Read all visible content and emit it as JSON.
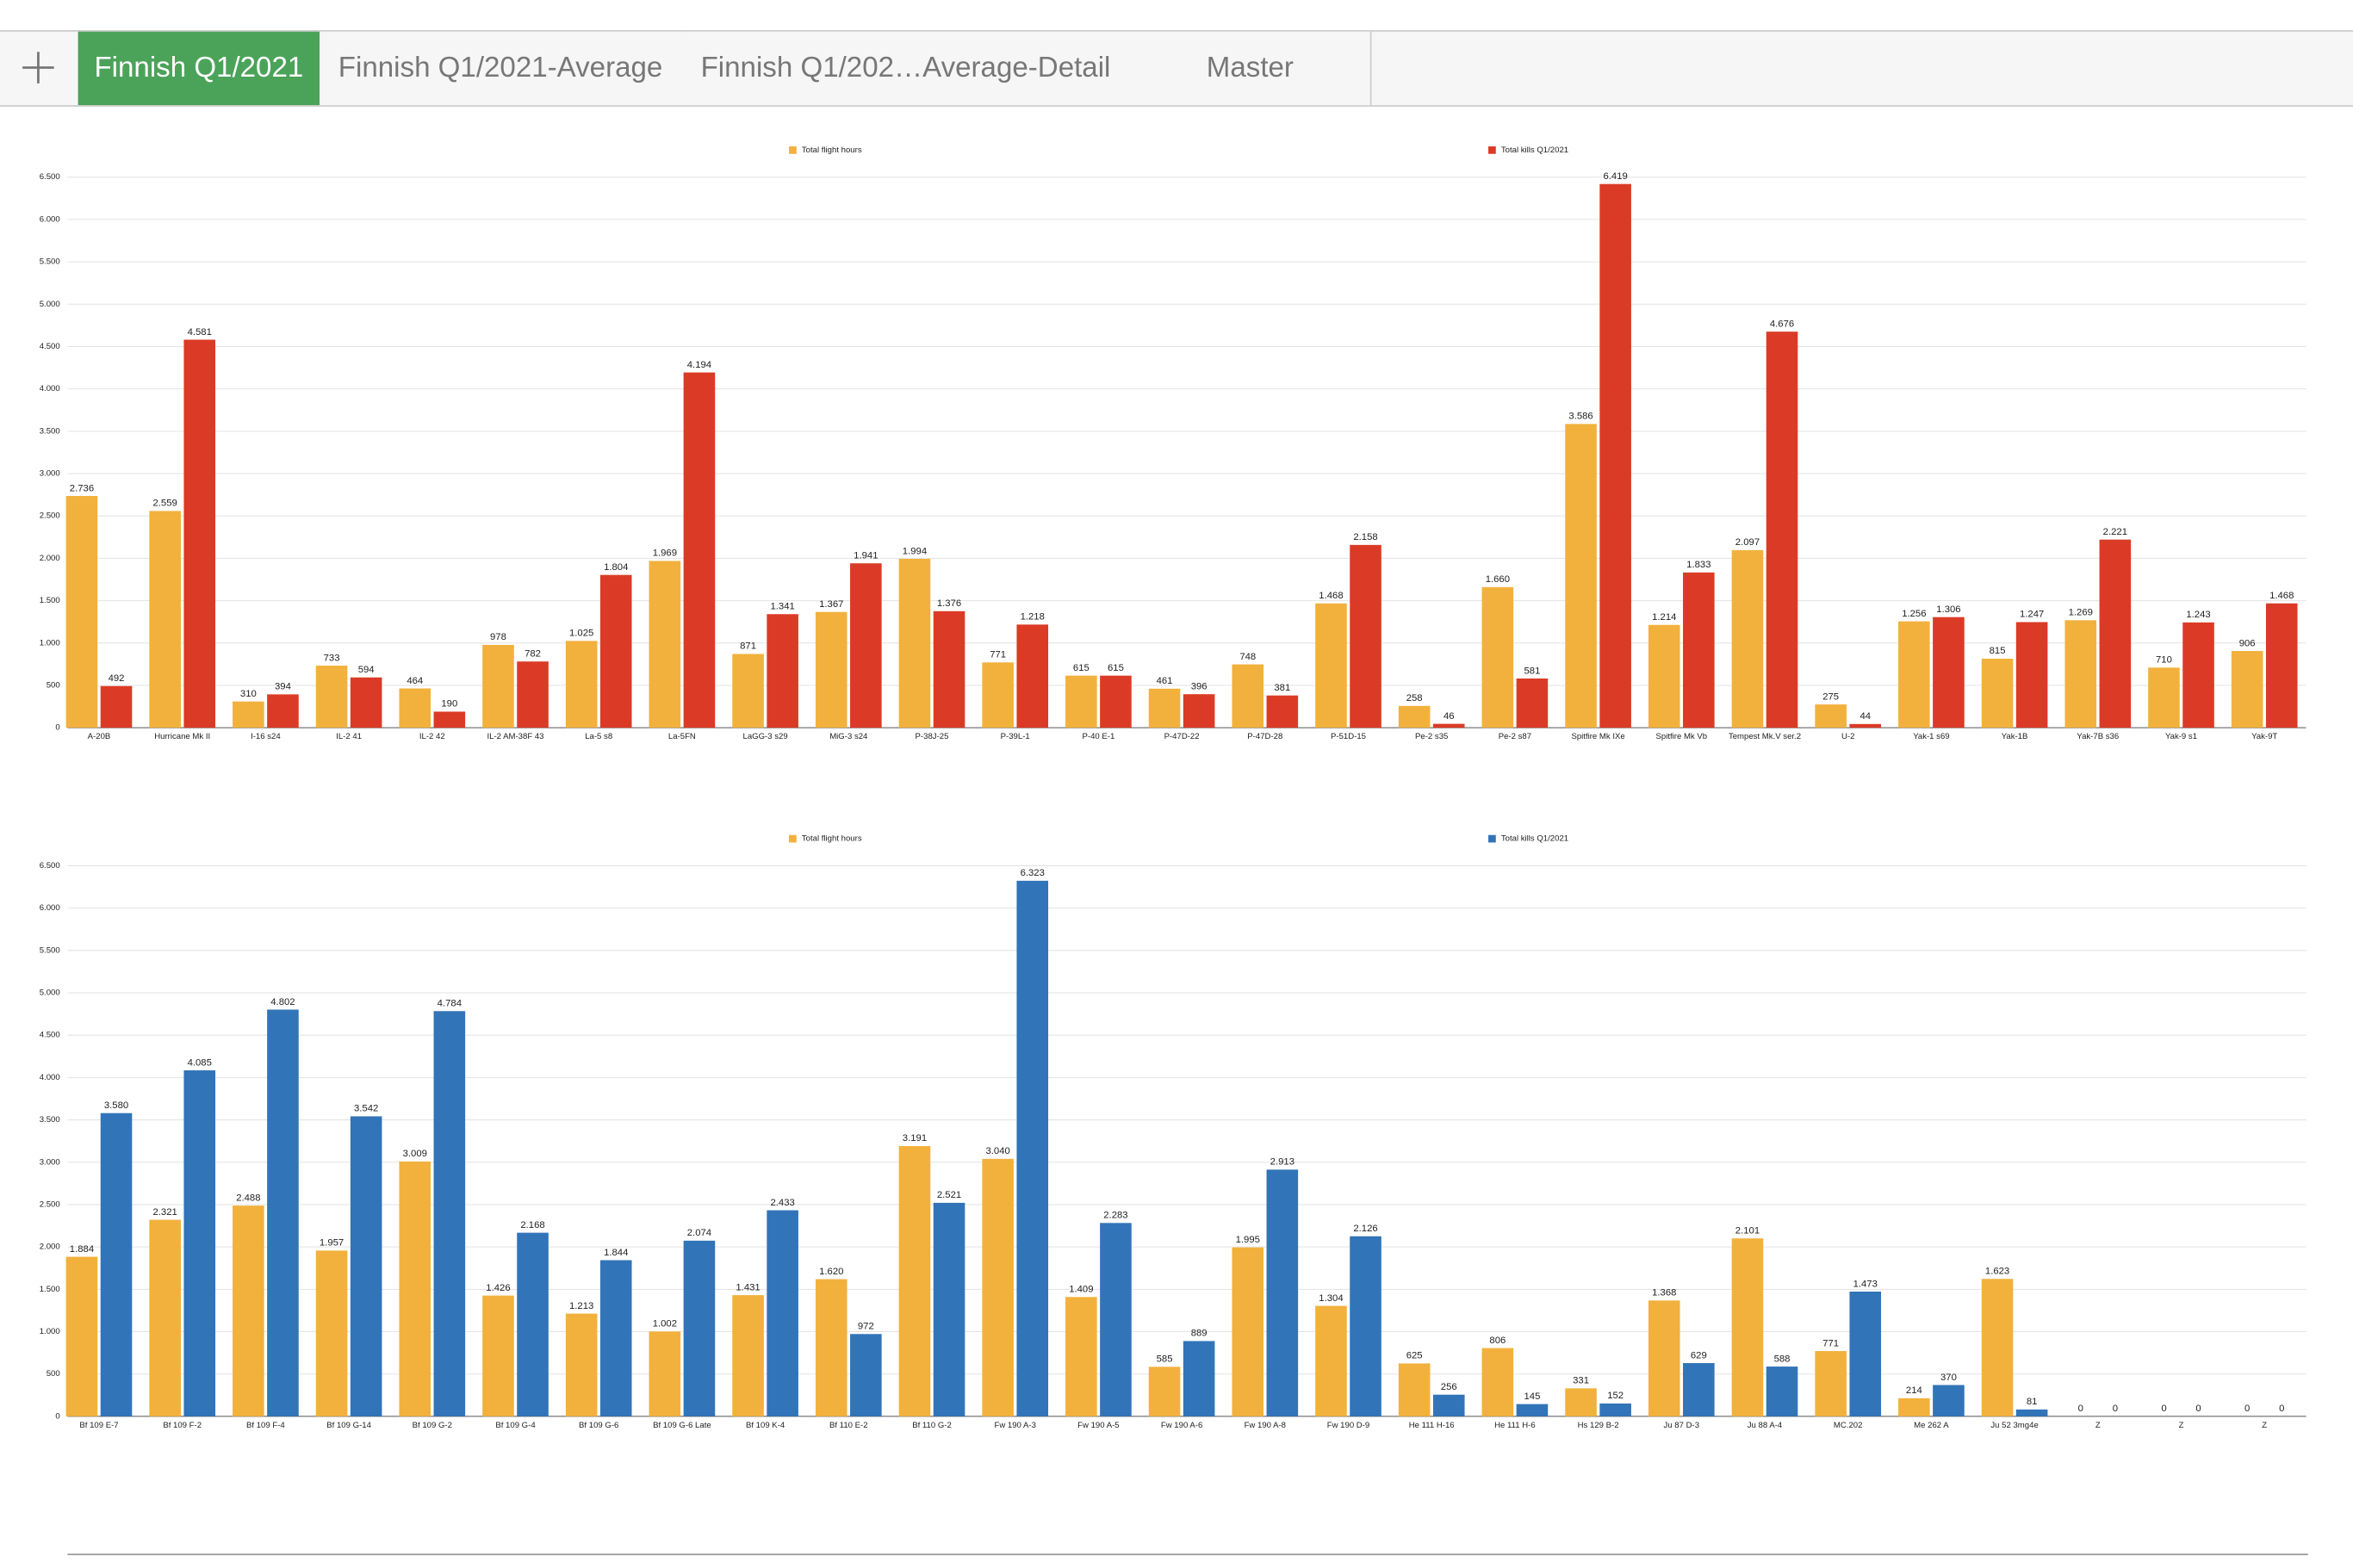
{
  "tabs": [
    "Finnish Q1/2021",
    "Finnish Q1/2021-Average",
    "Finnish Q1/202…Average-Detail",
    "Master"
  ],
  "chart_data": [
    {
      "type": "bar",
      "legend": "top",
      "grid": true,
      "categories": [
        "A-20B",
        "Hurricane Mk II",
        "I-16 s24",
        "IL-2 41",
        "IL-2 42",
        "IL-2 AM-38F 43",
        "La-5 s8",
        "La-5FN",
        "LaGG-3 s29",
        "MiG-3 s24",
        "P-38J-25",
        "P-39L-1",
        "P-40 E-1",
        "P-47D-22",
        "P-47D-28",
        "P-51D-15",
        "Pe-2 s35",
        "Pe-2 s87",
        "Spitfire Mk IXe",
        "Spitfire Mk Vb",
        "Tempest Mk.V ser.2",
        "U-2",
        "Yak-1 s69",
        "Yak-1B",
        "Yak-7B s36",
        "Yak-9 s1",
        "Yak-9T"
      ],
      "series": [
        {
          "name": "Total flight hours",
          "color": "#f2b13d",
          "values": [
            2736,
            2559,
            310,
            733,
            464,
            978,
            1025,
            1969,
            871,
            1367,
            1994,
            771,
            615,
            461,
            748,
            1468,
            258,
            1660,
            3586,
            1214,
            2097,
            275,
            1256,
            815,
            1269,
            710,
            906
          ],
          "value_labels": [
            "2.736",
            "2.559",
            "310",
            "733",
            "464",
            "978",
            "1.025",
            "1.969",
            "871",
            "1.367",
            "1.994",
            "771",
            "615",
            "461",
            "748",
            "1.468",
            "258",
            "1.660",
            "3.586",
            "1.214",
            "2.097",
            "275",
            "1.256",
            "815",
            "1.269",
            "710",
            "906"
          ]
        },
        {
          "name": "Total kills Q1/2021",
          "color": "#db3b26",
          "values": [
            492,
            4581,
            394,
            594,
            190,
            782,
            1804,
            4194,
            1341,
            1941,
            1376,
            1218,
            615,
            396,
            381,
            2158,
            46,
            581,
            6419,
            1833,
            4676,
            44,
            1306,
            1247,
            2221,
            1243,
            1468
          ],
          "value_labels": [
            "492",
            "4.581",
            "394",
            "594",
            "190",
            "782",
            "1.804",
            "4.194",
            "1.341",
            "1.941",
            "1.376",
            "1.218",
            "615",
            "396",
            "381",
            "2.158",
            "46",
            "581",
            "6.419",
            "1.833",
            "4.676",
            "44",
            "1.306",
            "1.247",
            "2.221",
            "1.243",
            "1.468"
          ]
        }
      ],
      "ylim": [
        0,
        6500
      ],
      "yticks": [
        0,
        500,
        {
          "value": 1000,
          "label": "1.000"
        },
        {
          "value": 1500,
          "label": "1.500"
        },
        {
          "value": 2000,
          "label": "2.000"
        },
        {
          "value": 2500,
          "label": "2.500"
        },
        {
          "value": 3000,
          "label": "3.000"
        },
        {
          "value": 3500,
          "label": "3.500"
        },
        {
          "value": 4000,
          "label": "4.000"
        },
        {
          "value": 4500,
          "label": "4.500"
        },
        {
          "value": 5000,
          "label": "5.000"
        },
        {
          "value": 5500,
          "label": "5.500"
        },
        {
          "value": 6000,
          "label": "6.000"
        },
        {
          "value": 6500,
          "label": "6.500"
        }
      ]
    },
    {
      "type": "bar",
      "legend": "top",
      "grid": true,
      "categories": [
        "Bf 109 E-7",
        "Bf 109 F-2",
        "Bf 109 F-4",
        "Bf 109 G-14",
        "Bf 109 G-2",
        "Bf 109 G-4",
        "Bf 109 G-6",
        "Bf 109 G-6 Late",
        "Bf 109 K-4",
        "Bf 110 E-2",
        "Bf 110 G-2",
        "Fw 190 A-3",
        "Fw 190 A-5",
        "Fw 190 A-6",
        "Fw 190 A-8",
        "Fw 190 D-9",
        "He 111 H-16",
        "He 111 H-6",
        "Hs 129 B-2",
        "Ju 87 D-3",
        "Ju 88 A-4",
        "MC.202",
        "Me 262 A",
        "Ju 52 3mg4e",
        "Z",
        "Z",
        "Z"
      ],
      "series": [
        {
          "name": "Total flight hours",
          "color": "#f2b13d",
          "values": [
            1884,
            2321,
            2488,
            1957,
            3009,
            1426,
            1213,
            1002,
            1431,
            1620,
            3191,
            3040,
            1409,
            585,
            1995,
            1304,
            625,
            806,
            331,
            1368,
            2101,
            771,
            214,
            1623,
            0,
            0,
            0
          ],
          "value_labels": [
            "1.884",
            "2.321",
            "2.488",
            "1.957",
            "3.009",
            "1.426",
            "1.213",
            "1.002",
            "1.431",
            "1.620",
            "3.191",
            "3.040",
            "1.409",
            "585",
            "1.995",
            "1.304",
            "625",
            "806",
            "331",
            "1.368",
            "2.101",
            "771",
            "214",
            "1.623",
            "0",
            "0",
            "0"
          ]
        },
        {
          "name": "Total kills Q1/2021",
          "color": "#3274b8",
          "values": [
            3580,
            4085,
            4802,
            3542,
            4784,
            2168,
            1844,
            2074,
            2433,
            972,
            2521,
            6323,
            2283,
            889,
            2913,
            2126,
            256,
            145,
            152,
            629,
            588,
            1473,
            370,
            81,
            0,
            0,
            0
          ],
          "value_labels": [
            "3.580",
            "4.085",
            "4.802",
            "3.542",
            "4.784",
            "2.168",
            "1.844",
            "2.074",
            "2.433",
            "972",
            "2.521",
            "6.323",
            "2.283",
            "889",
            "2.913",
            "2.126",
            "256",
            "145",
            "152",
            "629",
            "588",
            "1.473",
            "370",
            "81",
            "0",
            "0",
            "0"
          ]
        }
      ],
      "ylim": [
        0,
        6500
      ],
      "yticks": [
        0,
        500,
        {
          "value": 1000,
          "label": "1.000"
        },
        {
          "value": 1500,
          "label": "1.500"
        },
        {
          "value": 2000,
          "label": "2.000"
        },
        {
          "value": 2500,
          "label": "2.500"
        },
        {
          "value": 3000,
          "label": "3.000"
        },
        {
          "value": 3500,
          "label": "3.500"
        },
        {
          "value": 4000,
          "label": "4.000"
        },
        {
          "value": 4500,
          "label": "4.500"
        },
        {
          "value": 5000,
          "label": "5.000"
        },
        {
          "value": 5500,
          "label": "5.500"
        },
        {
          "value": 6000,
          "label": "6.000"
        },
        {
          "value": 6500,
          "label": "6.500"
        }
      ]
    }
  ]
}
